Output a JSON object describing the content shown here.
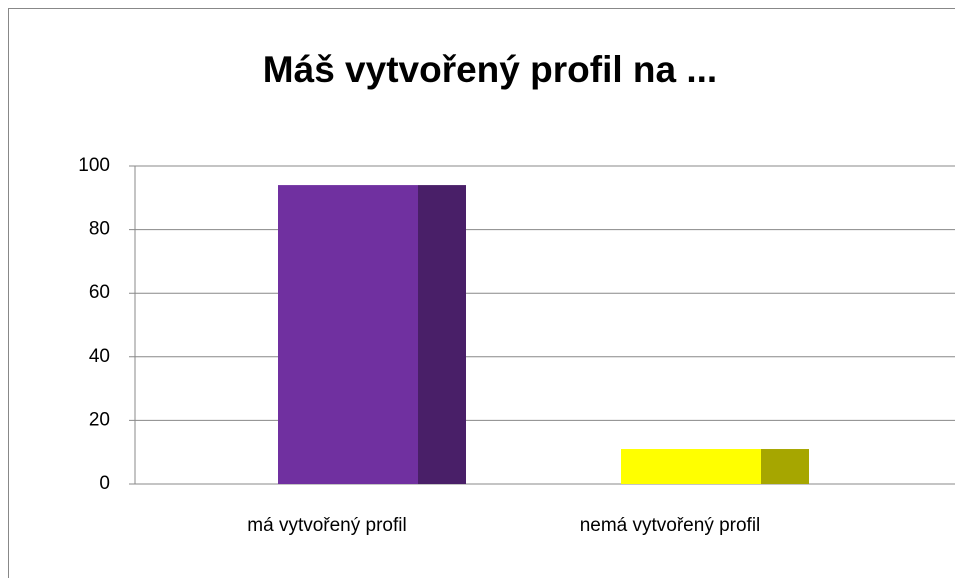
{
  "chart_data": {
    "type": "bar",
    "title": "Máš vytvořený profil na ...",
    "categories": [
      "má vytvořený profil",
      "nemá vytvořený profil"
    ],
    "values": [
      94,
      11
    ],
    "colors": [
      "#7030a0",
      "#ffff00"
    ],
    "ylim": [
      0,
      100
    ],
    "yticks": [
      0,
      20,
      40,
      60,
      80,
      100
    ],
    "grid": true
  }
}
